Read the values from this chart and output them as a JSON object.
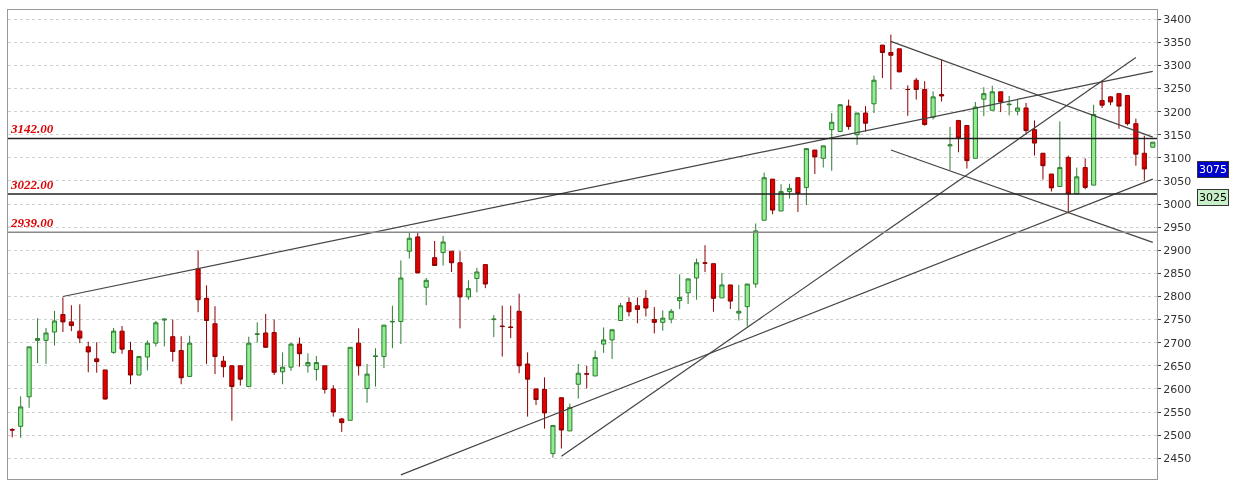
{
  "chart_data": {
    "type": "candlestick",
    "categories": [
      null,
      null,
      null,
      null,
      null,
      null,
      null,
      null,
      null,
      null,
      null,
      null,
      null,
      null,
      null,
      null,
      null,
      null,
      null,
      null,
      null,
      null,
      null,
      null,
      null,
      null,
      null,
      null,
      null,
      null,
      null,
      null,
      null,
      null,
      null,
      null,
      null,
      null,
      null,
      null,
      null,
      null,
      null,
      null,
      null,
      null,
      null,
      null,
      null,
      null,
      null,
      null,
      null,
      null,
      null,
      null,
      null,
      null,
      null,
      null,
      null,
      null,
      null,
      null,
      null,
      null,
      null,
      null,
      null,
      null,
      null,
      null,
      null,
      null,
      null,
      null,
      null,
      null,
      null,
      null,
      null,
      null,
      null,
      null,
      null,
      null,
      null,
      null,
      null,
      null,
      null,
      null,
      null,
      null,
      null,
      null,
      null,
      null,
      null,
      null,
      null,
      null,
      null,
      null,
      null,
      null,
      null,
      null,
      null,
      null,
      null,
      null,
      null,
      null,
      null,
      null,
      null,
      null,
      null,
      null,
      null,
      null,
      null,
      null,
      null,
      null,
      null,
      null,
      null,
      null,
      null,
      null,
      null,
      null,
      null,
      null
    ],
    "ohlc": [
      [
        2512,
        2515,
        2495,
        2511
      ],
      [
        2519,
        2584,
        2494,
        2561
      ],
      [
        2583,
        2691,
        2559,
        2691
      ],
      [
        2705,
        2753,
        2656,
        2709
      ],
      [
        2705,
        2732,
        2654,
        2721
      ],
      [
        2723,
        2769,
        2694,
        2747
      ],
      [
        2761,
        2798,
        2723,
        2745
      ],
      [
        2745,
        2781,
        2725,
        2737
      ],
      [
        2725,
        2783,
        2699,
        2710
      ],
      [
        2691,
        2702,
        2636,
        2680
      ],
      [
        2665,
        2701,
        2635,
        2659
      ],
      [
        2641,
        2641,
        2577,
        2578
      ],
      [
        2679,
        2732,
        2676,
        2725
      ],
      [
        2725,
        2736,
        2676,
        2686
      ],
      [
        2683,
        2702,
        2610,
        2630
      ],
      [
        2630,
        2670,
        2630,
        2670
      ],
      [
        2669,
        2705,
        2640,
        2699
      ],
      [
        2699,
        2747,
        2692,
        2743
      ],
      [
        2749,
        2751,
        2692,
        2751
      ],
      [
        2713,
        2750,
        2659,
        2681
      ],
      [
        2683,
        2714,
        2610,
        2624
      ],
      [
        2627,
        2715,
        2627,
        2699
      ],
      [
        2860,
        2900,
        2766,
        2793
      ],
      [
        2796,
        2824,
        2654,
        2748
      ],
      [
        2741,
        2779,
        2632,
        2670
      ],
      [
        2660,
        2671,
        2625,
        2648
      ],
      [
        2650,
        2650,
        2531,
        2605
      ],
      [
        2650,
        2650,
        2607,
        2621
      ],
      [
        2605,
        2713,
        2605,
        2699
      ],
      [
        2718,
        2744,
        2700,
        2719
      ],
      [
        2721,
        2762,
        2690,
        2690
      ],
      [
        2722,
        2750,
        2630,
        2636
      ],
      [
        2637,
        2679,
        2610,
        2647
      ],
      [
        2647,
        2700,
        2639,
        2697
      ],
      [
        2697,
        2711,
        2648,
        2676
      ],
      [
        2650,
        2677,
        2635,
        2657
      ],
      [
        2642,
        2671,
        2618,
        2657
      ],
      [
        2650,
        2650,
        2590,
        2599
      ],
      [
        2600,
        2608,
        2540,
        2550
      ],
      [
        2535,
        2537,
        2507,
        2527
      ],
      [
        2532,
        2690,
        2532,
        2690
      ],
      [
        2699,
        2731,
        2629,
        2650
      ],
      [
        2601,
        2654,
        2570,
        2632
      ],
      [
        2670,
        2688,
        2605,
        2671
      ],
      [
        2670,
        2738,
        2645,
        2738
      ],
      [
        2745,
        2780,
        2688,
        2746
      ],
      [
        2746,
        2878,
        2697,
        2840
      ],
      [
        2898,
        2938,
        2882,
        2926
      ],
      [
        2929,
        2938,
        2851,
        2851
      ],
      [
        2820,
        2840,
        2781,
        2835
      ],
      [
        2884,
        2920,
        2866,
        2867
      ],
      [
        2895,
        2931,
        2867,
        2918
      ],
      [
        2898,
        2898,
        2853,
        2873
      ],
      [
        2873,
        2898,
        2731,
        2799
      ],
      [
        2799,
        2835,
        2793,
        2817
      ],
      [
        2839,
        2862,
        2809,
        2853
      ],
      [
        2869,
        2869,
        2818,
        2827
      ],
      [
        2750,
        2760,
        2712,
        2751
      ],
      [
        2736,
        2780,
        2670,
        2735
      ],
      [
        2734,
        2780,
        2710,
        2733
      ],
      [
        2768,
        2806,
        2634,
        2650
      ],
      [
        2654,
        2679,
        2540,
        2621
      ],
      [
        2600,
        2600,
        2565,
        2577
      ],
      [
        2599,
        2625,
        2514,
        2548
      ],
      [
        2460,
        2521,
        2451,
        2521
      ],
      [
        2581,
        2581,
        2471,
        2511
      ],
      [
        2509,
        2568,
        2509,
        2560
      ],
      [
        2610,
        2654,
        2579,
        2634
      ],
      [
        2633,
        2650,
        2601,
        2632
      ],
      [
        2628,
        2683,
        2628,
        2668
      ],
      [
        2697,
        2733,
        2678,
        2706
      ],
      [
        2706,
        2728,
        2665,
        2728
      ],
      [
        2748,
        2786,
        2748,
        2780
      ],
      [
        2787,
        2798,
        2757,
        2767
      ],
      [
        2780,
        2798,
        2742,
        2772
      ],
      [
        2796,
        2814,
        2757,
        2775
      ],
      [
        2750,
        2777,
        2720,
        2744
      ],
      [
        2744,
        2770,
        2726,
        2753
      ],
      [
        2751,
        2773,
        2742,
        2768
      ],
      [
        2791,
        2848,
        2773,
        2798
      ],
      [
        2808,
        2838,
        2784,
        2838
      ],
      [
        2840,
        2882,
        2793,
        2873
      ],
      [
        2873,
        2911,
        2853,
        2872
      ],
      [
        2871,
        2871,
        2767,
        2796
      ],
      [
        2797,
        2851,
        2797,
        2825
      ],
      [
        2825,
        2825,
        2773,
        2790
      ],
      [
        2764,
        2825,
        2748,
        2768
      ],
      [
        2778,
        2827,
        2735,
        2827
      ],
      [
        2827,
        2958,
        2819,
        2942
      ],
      [
        2965,
        3068,
        2965,
        3057
      ],
      [
        3054,
        3054,
        2978,
        2987
      ],
      [
        2985,
        3043,
        2985,
        3027
      ],
      [
        3027,
        3044,
        3012,
        3034
      ],
      [
        3057,
        3057,
        2983,
        3023
      ],
      [
        3036,
        3120,
        2998,
        3120
      ],
      [
        3117,
        3117,
        3065,
        3102
      ],
      [
        3099,
        3126,
        3079,
        3126
      ],
      [
        3161,
        3197,
        3072,
        3177
      ],
      [
        3157,
        3215,
        3157,
        3215
      ],
      [
        3212,
        3226,
        3161,
        3168
      ],
      [
        3150,
        3197,
        3128,
        3197
      ],
      [
        3197,
        3212,
        3157,
        3175
      ],
      [
        3217,
        3278,
        3197,
        3268
      ],
      [
        3344,
        3344,
        3273,
        3328
      ],
      [
        3328,
        3367,
        3248,
        3322
      ],
      [
        3336,
        3336,
        3286,
        3286
      ],
      [
        3248,
        3257,
        3191,
        3248
      ],
      [
        3268,
        3273,
        3226,
        3248
      ],
      [
        3248,
        3266,
        3170,
        3172
      ],
      [
        3188,
        3244,
        3183,
        3232
      ],
      [
        3237,
        3313,
        3222,
        3234
      ],
      [
        3126,
        3167,
        3074,
        3128
      ],
      [
        3181,
        3181,
        3112,
        3143
      ],
      [
        3170,
        3170,
        3077,
        3094
      ],
      [
        3099,
        3221,
        3099,
        3210
      ],
      [
        3227,
        3253,
        3190,
        3239
      ],
      [
        3203,
        3256,
        3203,
        3243
      ],
      [
        3243,
        3243,
        3199,
        3221
      ],
      [
        3215,
        3234,
        3192,
        3216
      ],
      [
        3201,
        3227,
        3192,
        3208
      ],
      [
        3208,
        3219,
        3150,
        3159
      ],
      [
        3161,
        3181,
        3105,
        3132
      ],
      [
        3110,
        3110,
        3053,
        3083
      ],
      [
        3065,
        3065,
        3027,
        3035
      ],
      [
        3038,
        3179,
        3038,
        3079
      ],
      [
        3101,
        3105,
        2980,
        3022
      ],
      [
        3022,
        3079,
        3022,
        3059
      ],
      [
        3079,
        3099,
        3032,
        3036
      ],
      [
        3041,
        3215,
        3041,
        3194
      ],
      [
        3224,
        3268,
        3208,
        3214
      ],
      [
        3232,
        3234,
        3214,
        3221
      ],
      [
        3239,
        3239,
        3163,
        3212
      ],
      [
        3235,
        3235,
        3170,
        3174
      ],
      [
        3174,
        3185,
        3083,
        3108
      ],
      [
        3110,
        3148,
        3051,
        3076
      ],
      [
        3123,
        3134,
        3123,
        3134
      ]
    ],
    "series": [
      {
        "type": "line",
        "color": "#444444",
        "values": [
          null,
          null,
          null,
          null,
          null,
          null,
          2800,
          null,
          null,
          null,
          null,
          null,
          null,
          null,
          null,
          null,
          null,
          null,
          null,
          null,
          null,
          null,
          null,
          null,
          null,
          null,
          null,
          null,
          null,
          null,
          null,
          null,
          null,
          null,
          null,
          null,
          null,
          null,
          null,
          null,
          null,
          null,
          null,
          null,
          null,
          null,
          null,
          null,
          null,
          null,
          null,
          null,
          null,
          null,
          null,
          null,
          null,
          null,
          null,
          null,
          null,
          null,
          null,
          null,
          null,
          null,
          null,
          null,
          null,
          null,
          null,
          null,
          null,
          null,
          null,
          null,
          null,
          null,
          null,
          null,
          null,
          null,
          null,
          null,
          null,
          null,
          null,
          null,
          null,
          null,
          null,
          null,
          null,
          null,
          null,
          null,
          null,
          null,
          null,
          null,
          null,
          null,
          null,
          null,
          null,
          null,
          null,
          null,
          null,
          null,
          null,
          null,
          null,
          null,
          null,
          null,
          null,
          null,
          null,
          null,
          null,
          null,
          null,
          null,
          null,
          null,
          null,
          null,
          null,
          null,
          null,
          null,
          null,
          null,
          null,
          3287
        ]
      },
      {
        "type": "line",
        "color": "#444444",
        "values": [
          null,
          null,
          null,
          null,
          null,
          null,
          null,
          null,
          null,
          null,
          null,
          null,
          null,
          null,
          null,
          null,
          null,
          null,
          null,
          null,
          null,
          null,
          null,
          null,
          null,
          null,
          null,
          null,
          null,
          null,
          null,
          null,
          null,
          null,
          null,
          null,
          null,
          null,
          null,
          null,
          null,
          null,
          null,
          null,
          null,
          null,
          2414,
          null,
          null,
          null,
          null,
          null,
          null,
          null,
          null,
          null,
          null,
          null,
          null,
          null,
          null,
          null,
          null,
          null,
          null,
          null,
          null,
          null,
          null,
          null,
          null,
          null,
          null,
          null,
          null,
          null,
          null,
          null,
          null,
          null,
          null,
          null,
          null,
          null,
          null,
          null,
          null,
          null,
          null,
          null,
          null,
          null,
          null,
          null,
          null,
          null,
          null,
          null,
          null,
          null,
          null,
          null,
          null,
          null,
          null,
          null,
          null,
          null,
          null,
          null,
          null,
          null,
          null,
          null,
          null,
          null,
          null,
          null,
          null,
          null,
          null,
          null,
          null,
          null,
          null,
          null,
          null,
          null,
          null,
          null,
          null,
          null,
          null,
          null,
          null,
          3054
        ]
      },
      {
        "type": "line",
        "color": "#444444",
        "values": [
          null,
          null,
          null,
          null,
          null,
          null,
          null,
          null,
          null,
          null,
          null,
          null,
          null,
          null,
          null,
          null,
          null,
          null,
          null,
          null,
          null,
          null,
          null,
          null,
          null,
          null,
          null,
          null,
          null,
          null,
          null,
          null,
          null,
          null,
          null,
          null,
          null,
          null,
          null,
          null,
          null,
          null,
          null,
          null,
          null,
          null,
          null,
          null,
          null,
          null,
          null,
          null,
          null,
          null,
          null,
          null,
          null,
          null,
          null,
          null,
          null,
          null,
          null,
          null,
          null,
          2454,
          null,
          null,
          null,
          null,
          null,
          null,
          null,
          null,
          null,
          null,
          null,
          null,
          null,
          null,
          null,
          null,
          null,
          null,
          null,
          null,
          null,
          null,
          null,
          null,
          null,
          null,
          null,
          null,
          null,
          null,
          null,
          null,
          null,
          null,
          null,
          null,
          null,
          null,
          null,
          null,
          null,
          null,
          null,
          null,
          null,
          null,
          null,
          null,
          null,
          null,
          null,
          null,
          null,
          null,
          null,
          null,
          null,
          null,
          null,
          null,
          null,
          null,
          null,
          null,
          null,
          null,
          null,
          3317,
          null,
          null
        ]
      },
      {
        "type": "line",
        "color": "#444444",
        "values": [
          null,
          null,
          null,
          null,
          null,
          null,
          null,
          null,
          null,
          null,
          null,
          null,
          null,
          null,
          null,
          null,
          null,
          null,
          null,
          null,
          null,
          null,
          null,
          null,
          null,
          null,
          null,
          null,
          null,
          null,
          null,
          null,
          null,
          null,
          null,
          null,
          null,
          null,
          null,
          null,
          null,
          null,
          null,
          null,
          null,
          null,
          null,
          null,
          null,
          null,
          null,
          null,
          null,
          null,
          null,
          null,
          null,
          null,
          null,
          null,
          null,
          null,
          null,
          null,
          null,
          null,
          null,
          null,
          null,
          null,
          null,
          null,
          null,
          null,
          null,
          null,
          null,
          null,
          null,
          null,
          null,
          null,
          null,
          null,
          null,
          null,
          null,
          null,
          null,
          null,
          null,
          null,
          null,
          null,
          null,
          null,
          null,
          null,
          null,
          null,
          null,
          null,
          null,
          null,
          3352,
          null,
          null,
          null,
          null,
          null,
          null,
          null,
          null,
          null,
          null,
          null,
          null,
          null,
          null,
          null,
          null,
          null,
          null,
          null,
          null,
          null,
          null,
          null,
          null,
          null,
          null,
          null,
          null,
          null,
          null,
          3145
        ]
      },
      {
        "type": "line",
        "color": "#444444",
        "values": [
          null,
          null,
          null,
          null,
          null,
          null,
          null,
          null,
          null,
          null,
          null,
          null,
          null,
          null,
          null,
          null,
          null,
          null,
          null,
          null,
          null,
          null,
          null,
          null,
          null,
          null,
          null,
          null,
          null,
          null,
          null,
          null,
          null,
          null,
          null,
          null,
          null,
          null,
          null,
          null,
          null,
          null,
          null,
          null,
          null,
          null,
          null,
          null,
          null,
          null,
          null,
          null,
          null,
          null,
          null,
          null,
          null,
          null,
          null,
          null,
          null,
          null,
          null,
          null,
          null,
          null,
          null,
          null,
          null,
          null,
          null,
          null,
          null,
          null,
          null,
          null,
          null,
          null,
          null,
          null,
          null,
          null,
          null,
          null,
          null,
          null,
          null,
          null,
          null,
          null,
          null,
          null,
          null,
          null,
          null,
          null,
          null,
          null,
          null,
          null,
          null,
          null,
          null,
          null,
          3117,
          null,
          null,
          null,
          null,
          null,
          null,
          null,
          null,
          null,
          null,
          null,
          null,
          null,
          null,
          null,
          null,
          null,
          null,
          null,
          null,
          null,
          null,
          null,
          null,
          null,
          null,
          null,
          null,
          null,
          null,
          2917
        ]
      }
    ],
    "ref_lines": [
      {
        "axis": "y",
        "value": 3142,
        "label": "3142.00",
        "color": "#222222"
      },
      {
        "axis": "y",
        "value": 3022,
        "label": "3022.00",
        "color": "#222222"
      },
      {
        "axis": "y",
        "value": 2939,
        "label": "2939.00",
        "color": "#888888"
      }
    ],
    "annotations": [
      "3075",
      "3025"
    ],
    "ylim": [
      2405,
      3420
    ],
    "yticks": [
      2450,
      2500,
      2550,
      2600,
      2650,
      2700,
      2750,
      2800,
      2850,
      2900,
      2950,
      3000,
      3050,
      3100,
      3150,
      3200,
      3250,
      3300,
      3350,
      3400
    ],
    "grid": "y",
    "legend": false,
    "tick_labels": "y"
  }
}
